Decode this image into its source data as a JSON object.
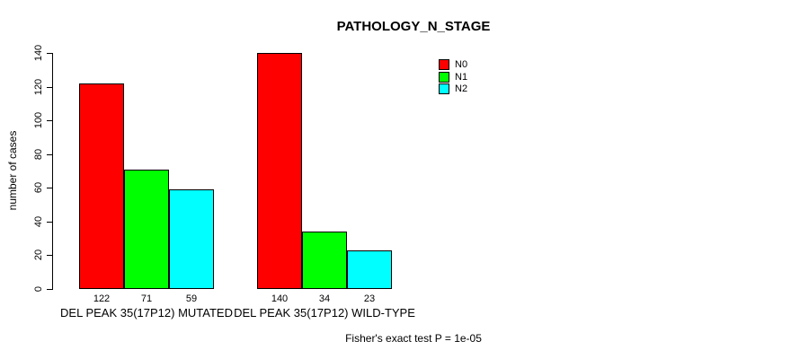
{
  "title": "PATHOLOGY_N_STAGE",
  "ylabel": "number of cases",
  "footer": "Fisher's exact test P = 1e-05",
  "colors": {
    "N0": "#FF0000",
    "N1": "#00FF00",
    "N2": "#00FFFF",
    "axis": "#000000",
    "background": "#FFFFFF"
  },
  "chart_data": {
    "type": "bar",
    "title": "PATHOLOGY_N_STAGE",
    "xlabel": "",
    "ylabel": "number of cases",
    "categories": [
      "DEL PEAK 35(17P12) MUTATED",
      "DEL PEAK 35(17P12) WILD-TYPE"
    ],
    "series": [
      {
        "name": "N0",
        "color": "#FF0000",
        "values": [
          122,
          140
        ]
      },
      {
        "name": "N1",
        "color": "#00FF00",
        "values": [
          71,
          34
        ]
      },
      {
        "name": "N2",
        "color": "#00FFFF",
        "values": [
          59,
          23
        ]
      }
    ],
    "bar_value_labels": [
      [
        122,
        71,
        59
      ],
      [
        140,
        34,
        23
      ]
    ],
    "yticks": [
      0,
      20,
      40,
      60,
      80,
      100,
      120,
      140
    ],
    "ylim": [
      0,
      140
    ],
    "grid": false,
    "legend_position": "top-right",
    "legend_entries": [
      "N0",
      "N1",
      "N2"
    ],
    "annotation": "Fisher's exact test P = 1e-05"
  }
}
